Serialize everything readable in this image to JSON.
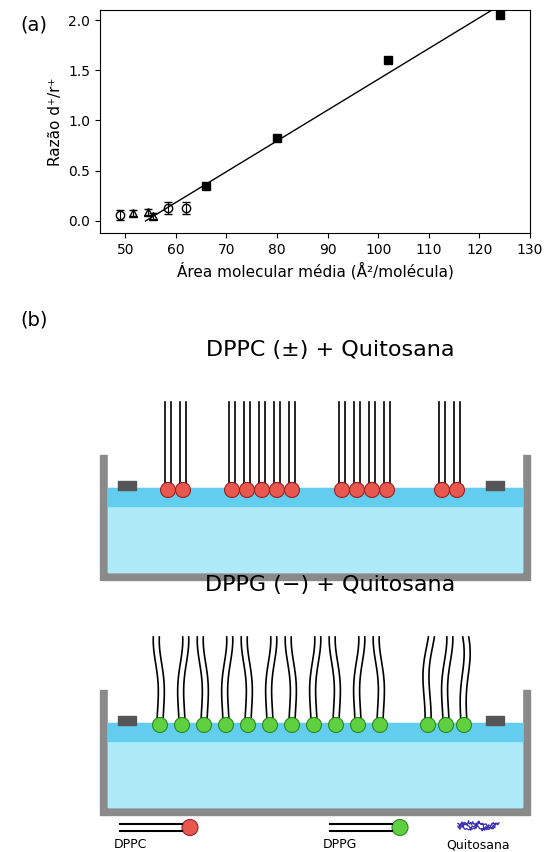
{
  "panel_labels": [
    "(a)",
    "(b)"
  ],
  "chart_data": {
    "type": "scatter",
    "x_label": "Área molecular média (Å²/molécula)",
    "y_label": "Razão d⁺/r⁺",
    "xlim": [
      45,
      130
    ],
    "xticks": [
      50,
      60,
      70,
      80,
      90,
      100,
      110,
      120,
      130
    ],
    "ylim": [
      -0.12,
      2.1
    ],
    "yticks": [
      {
        "value": 0.0,
        "label": "0.0"
      },
      {
        "value": 0.5,
        "label": "0.5"
      },
      {
        "value": 1.0,
        "label": "1.0"
      },
      {
        "value": 1.5,
        "label": "1.5"
      },
      {
        "value": 2.0,
        "label": "2.0"
      }
    ],
    "grid": false,
    "series": [
      {
        "type": "scatter",
        "marker": "square",
        "color": "#000000",
        "x": [
          66,
          80,
          102,
          124
        ],
        "values": [
          0.35,
          0.83,
          1.6,
          2.05
        ]
      },
      {
        "type": "scatter",
        "marker": "circle_open",
        "color": "#000000",
        "x": [
          49,
          58.5,
          62
        ],
        "values": [
          0.06,
          0.13,
          0.13
        ],
        "errors": [
          0.05,
          0.06,
          0.06
        ]
      },
      {
        "type": "scatter",
        "marker": "triangle_open",
        "color": "#000000",
        "x": [
          51.5,
          54.5,
          55.5
        ],
        "values": [
          0.08,
          0.09,
          0.05
        ],
        "errors": [
          0.03,
          0.03,
          0.03
        ]
      },
      {
        "type": "line",
        "color": "#000000",
        "x": [
          54,
          122.5
        ],
        "values": [
          0.0,
          2.1
        ]
      }
    ]
  },
  "diagram": {
    "troughs": [
      {
        "title": "DPPC (±) + Quitosana",
        "lipid": "DPPC"
      },
      {
        "title": "DPPG (−) + Quitosana",
        "lipid": "DPPG"
      }
    ],
    "legend": [
      "DPPC",
      "DPPG",
      "Quitosana"
    ]
  }
}
